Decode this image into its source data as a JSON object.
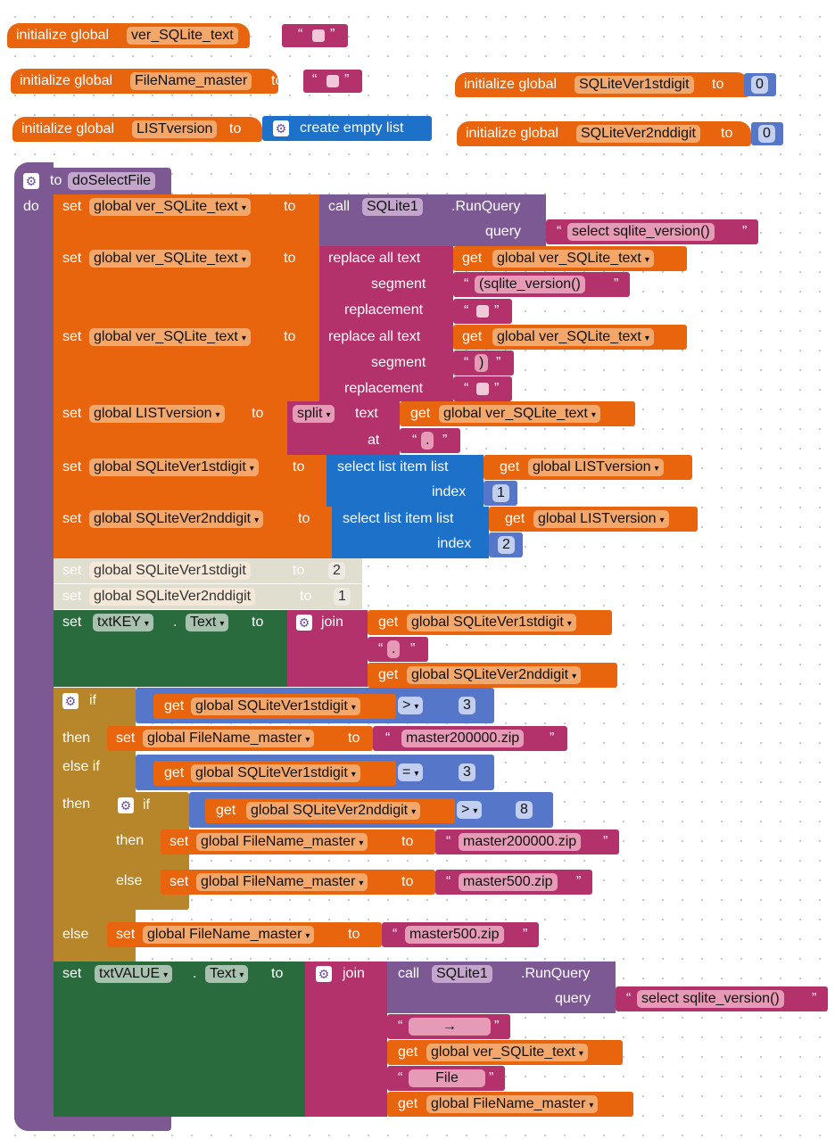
{
  "globals": [
    {
      "keyword": "initialize global",
      "name": "ver_SQLite_text",
      "to": "to"
    },
    {
      "keyword": "initialize global",
      "name": "FileName_master",
      "to": "to"
    },
    {
      "keyword": "initialize global",
      "name": "LISTversion",
      "to": "to",
      "value": "create empty list"
    },
    {
      "keyword": "initialize global",
      "name": "SQLiteVer1stdigit",
      "to": "to",
      "value": "0"
    },
    {
      "keyword": "initialize global",
      "name": "SQLiteVer2nddigit",
      "to": "to",
      "value": "0"
    }
  ],
  "procedure": {
    "to": "to",
    "name": "doSelectFile",
    "do": "do"
  },
  "kw": {
    "set": "set",
    "get": "get",
    "to": "to",
    "call": "call",
    "query": "query",
    "replace": "replace all text",
    "segment": "segment",
    "replacement": "replacement",
    "split": "split",
    "text": "text",
    "at": "at",
    "select": "select list item  list",
    "index": "index",
    "join": "join",
    "if": "if",
    "then": "then",
    "elseif": "else if",
    "else": "else",
    "dot": ".",
    "text_prop": "Text",
    "runquery": ".RunQuery"
  },
  "vars": {
    "ver": "global ver_SQLite_text",
    "list": "global LISTversion",
    "d1": "global SQLiteVer1stdigit",
    "d2": "global SQLiteVer2nddigit",
    "fn": "global FileName_master"
  },
  "comps": {
    "sqlite": "SQLite1",
    "key": "txtKEY",
    "value": "txtVALUE"
  },
  "strings": {
    "q1": "select sqlite_version()",
    "seg1": "(sqlite_version()",
    "seg2": ")",
    "at": ".",
    "sep": ".",
    "z200": "master200000.zip",
    "z500": "master500.zip",
    "arrow": "→",
    "file": "File"
  },
  "nums": {
    "n1": "1",
    "n2": "2",
    "n3": "3",
    "n8": "8"
  },
  "ops": {
    "gt": ">",
    "eq": "="
  }
}
